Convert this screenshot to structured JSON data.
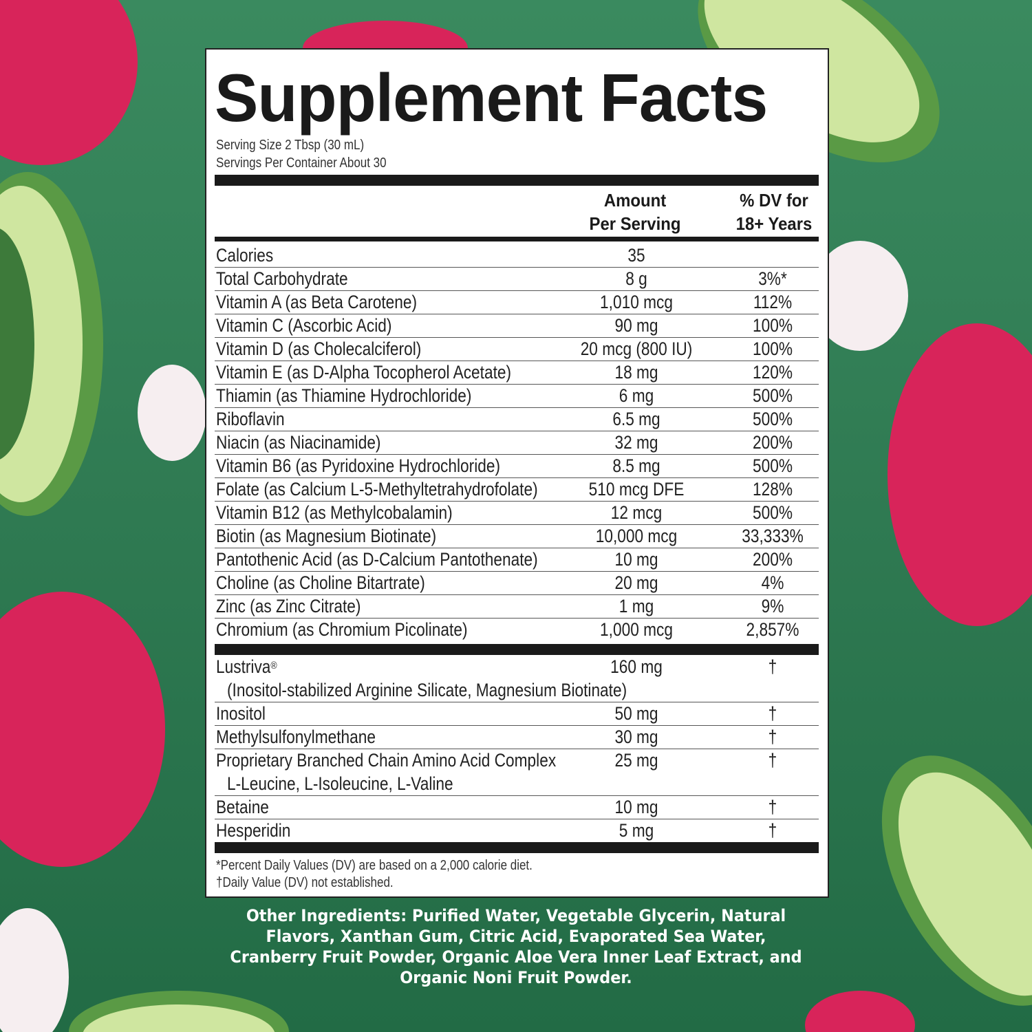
{
  "title": "Supplement Facts",
  "serving_size": "Serving Size 2 Tbsp (30 mL)",
  "servings_per_container": "Servings Per Container About 30",
  "header": {
    "amount_line1": "Amount",
    "amount_line2": "Per Serving",
    "dv_line1": "% DV for",
    "dv_line2": "18+ Years"
  },
  "nutrients": [
    {
      "name": "Calories",
      "amount": "35",
      "dv": ""
    },
    {
      "name": "Total Carbohydrate",
      "amount": "8 g",
      "dv": "3%*"
    },
    {
      "name": "Vitamin A (as Beta Carotene)",
      "amount": "1,010 mcg",
      "dv": "112%"
    },
    {
      "name": "Vitamin C (Ascorbic Acid)",
      "amount": "90 mg",
      "dv": "100%"
    },
    {
      "name": "Vitamin D (as Cholecalciferol)",
      "amount": "20 mcg (800 IU)",
      "dv": "100%"
    },
    {
      "name": "Vitamin E (as D-Alpha Tocopherol Acetate)",
      "amount": "18 mg",
      "dv": "120%"
    },
    {
      "name": "Thiamin (as Thiamine Hydrochloride)",
      "amount": "6 mg",
      "dv": "500%"
    },
    {
      "name": "Riboflavin",
      "amount": "6.5 mg",
      "dv": "500%"
    },
    {
      "name": "Niacin (as Niacinamide)",
      "amount": "32 mg",
      "dv": "200%"
    },
    {
      "name": "Vitamin B6 (as Pyridoxine Hydrochloride)",
      "amount": "8.5 mg",
      "dv": "500%"
    },
    {
      "name": "Folate (as Calcium L-5-Methyltetrahydrofolate)",
      "amount": "510 mcg DFE",
      "dv": "128%"
    },
    {
      "name": "Vitamin B12 (as Methylcobalamin)",
      "amount": "12 mcg",
      "dv": "500%"
    },
    {
      "name": "Biotin (as Magnesium Biotinate)",
      "amount": "10,000 mcg",
      "dv": "33,333%"
    },
    {
      "name": "Pantothenic Acid (as D-Calcium Pantothenate)",
      "amount": "10 mg",
      "dv": "200%"
    },
    {
      "name": "Choline (as Choline Bitartrate)",
      "amount": "20 mg",
      "dv": "4%"
    },
    {
      "name": "Zinc (as Zinc Citrate)",
      "amount": "1 mg",
      "dv": "9%"
    },
    {
      "name": "Chromium (as Chromium Picolinate)",
      "amount": "1,000 mcg",
      "dv": "2,857%"
    }
  ],
  "other_nutrients": [
    {
      "name": "Lustriva",
      "mark": "®",
      "sub": "(Inositol-stabilized Arginine Silicate, Magnesium Biotinate)",
      "amount": "160 mg",
      "dv": "†"
    },
    {
      "name": "Inositol",
      "amount": "50 mg",
      "dv": "†"
    },
    {
      "name": "Methylsulfonylmethane",
      "amount": "30 mg",
      "dv": "†"
    },
    {
      "name": "Proprietary Branched Chain Amino Acid Complex",
      "sub": "L-Leucine, L-Isoleucine, L-Valine",
      "amount": "25 mg",
      "dv": "†"
    },
    {
      "name": "Betaine",
      "amount": "10 mg",
      "dv": "†"
    },
    {
      "name": "Hesperidin",
      "amount": "5 mg",
      "dv": "†"
    }
  ],
  "footnotes": [
    "*Percent Daily Values (DV) are based on a 2,000 calorie diet.",
    "†Daily Value (DV) not established."
  ],
  "other_ingredients": "Other Ingredients: Purified Water, Vegetable Glycerin, Natural Flavors, Xanthan Gum, Citric Acid, Evaporated Sea Water, Cranberry Fruit Powder, Organic Aloe Vera Inner Leaf Extract, and Organic Noni Fruit Powder.",
  "colors": {
    "background": "#2f7a52",
    "avocado": "#cfe6a0",
    "dragonfruit": "#d8245a"
  }
}
